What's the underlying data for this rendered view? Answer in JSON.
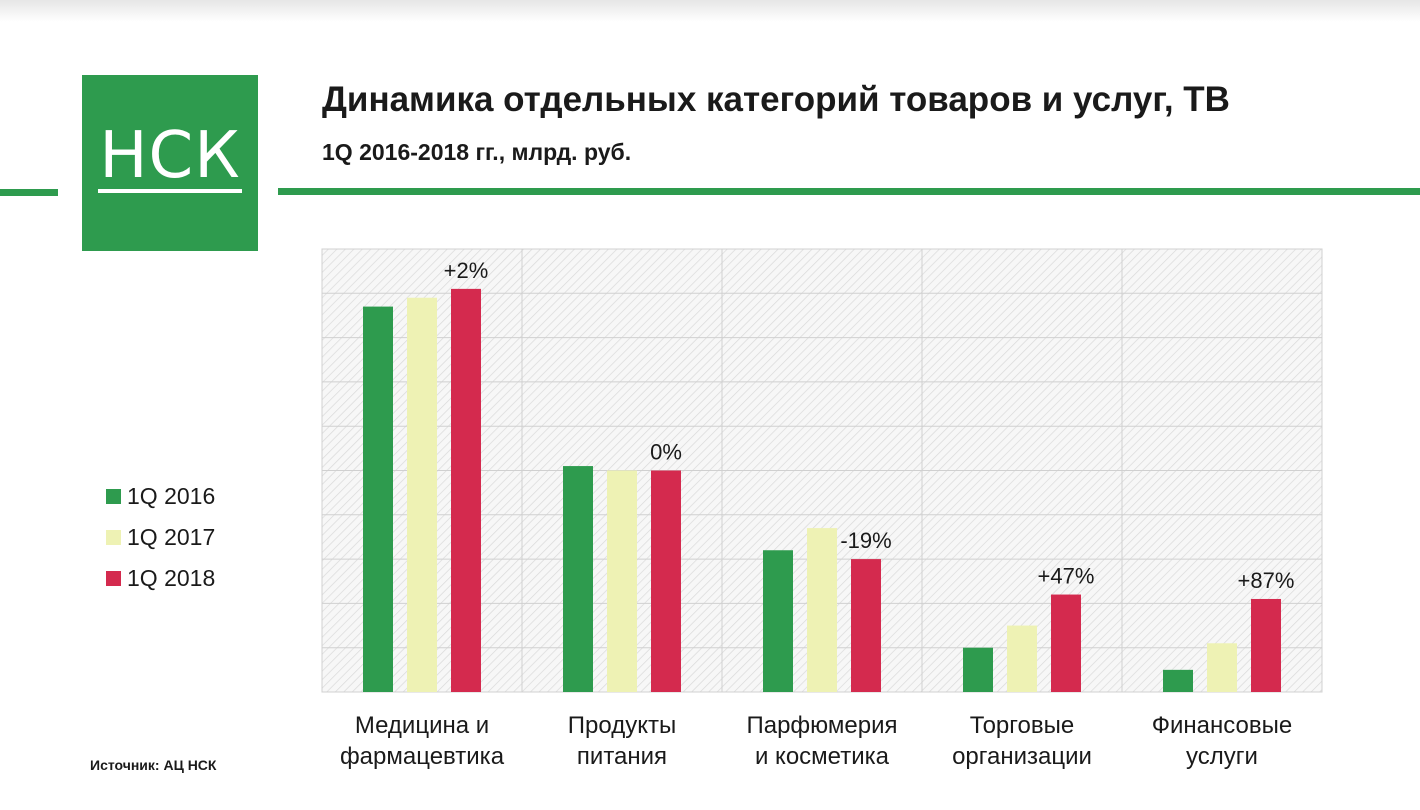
{
  "logo": {
    "text": "НСК",
    "color": "#2e9b4e"
  },
  "header": {
    "title": "Динамика отдельных категорий товаров и услуг, ТВ",
    "subtitle": "1Q 2016-2018 гг., млрд. руб."
  },
  "source": "Источник: АЦ НСК",
  "legend": [
    {
      "label": "1Q 2016",
      "color": "#2e9b4e"
    },
    {
      "label": "1Q 2017",
      "color": "#eef2b4"
    },
    {
      "label": "1Q 2018",
      "color": "#d42a4e"
    }
  ],
  "chart_data": {
    "type": "bar",
    "title": "Динамика отдельных категорий товаров и услуг, ТВ",
    "ylabel": "млрд. руб.",
    "ylim": [
      0,
      10
    ],
    "grid": true,
    "y_tick_labels_shown": false,
    "legend_position": "left",
    "categories": [
      [
        "Медицина и",
        "фармацевтика"
      ],
      [
        "Продукты",
        "питания"
      ],
      [
        "Парфюмерия",
        "и косметика"
      ],
      [
        "Торговые",
        "организации"
      ],
      [
        "Финансовые",
        "услуги"
      ]
    ],
    "series": [
      {
        "name": "1Q 2016",
        "color": "#2e9b4e",
        "values": [
          8.7,
          5.1,
          3.2,
          1.0,
          0.5
        ]
      },
      {
        "name": "1Q 2017",
        "color": "#eef2b4",
        "values": [
          8.9,
          5.0,
          3.7,
          1.5,
          1.1
        ]
      },
      {
        "name": "1Q 2018",
        "color": "#d42a4e",
        "values": [
          9.1,
          5.0,
          3.0,
          2.2,
          2.1
        ]
      }
    ],
    "annotations": [
      "+2%",
      "0%",
      "-19%",
      "+47%",
      "+87%"
    ]
  }
}
